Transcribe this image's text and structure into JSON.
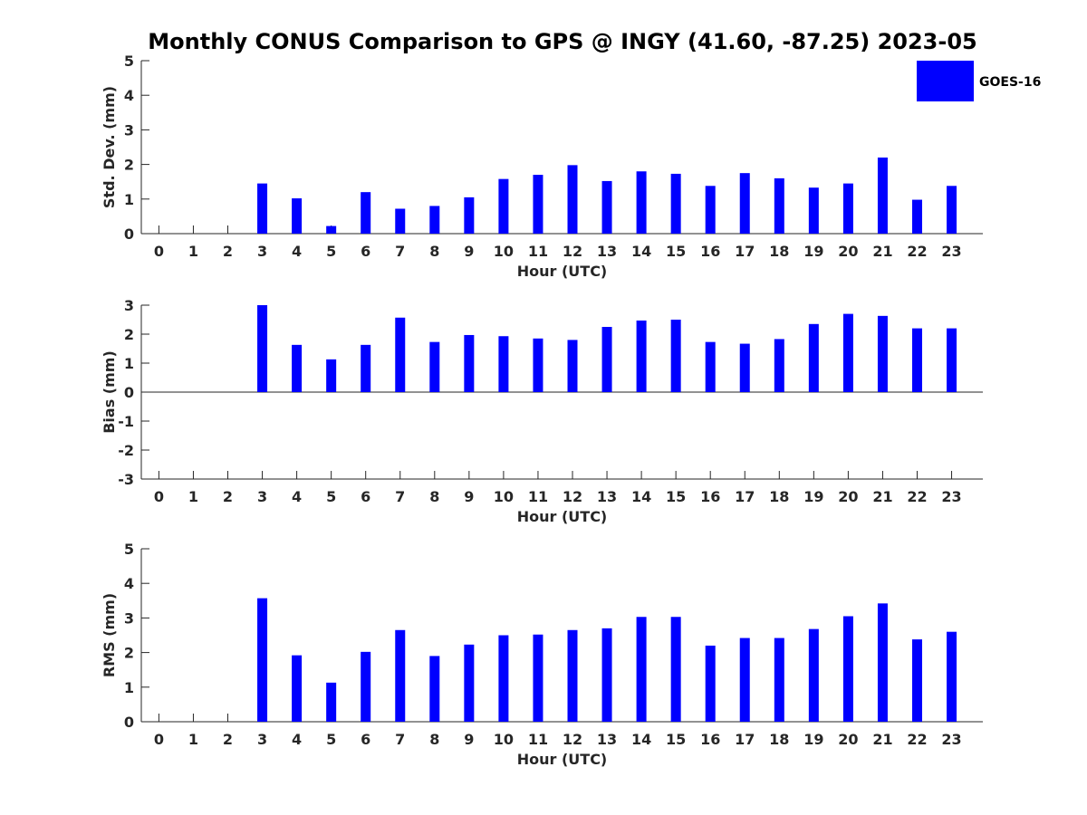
{
  "title": "Monthly CONUS Comparison to GPS @ INGY (41.60, -87.25) 2023-05",
  "legend": {
    "label": "GOES-16",
    "color": "#0000ff",
    "placement": "top-right"
  },
  "chart_data": [
    {
      "type": "bar",
      "xlabel": "Hour (UTC)",
      "ylabel": "Std. Dev. (mm)",
      "ylim": [
        0,
        5
      ],
      "yticks": [
        "0",
        "1",
        "2",
        "3",
        "4",
        "5"
      ],
      "categories": [
        "0",
        "1",
        "2",
        "3",
        "4",
        "5",
        "6",
        "7",
        "8",
        "9",
        "10",
        "11",
        "12",
        "13",
        "14",
        "15",
        "16",
        "17",
        "18",
        "19",
        "20",
        "21",
        "22",
        "23"
      ],
      "series": [
        {
          "name": "GOES-16",
          "values": [
            null,
            null,
            null,
            1.45,
            1.02,
            0.22,
            1.2,
            0.72,
            0.8,
            1.05,
            1.58,
            1.7,
            1.98,
            1.52,
            1.8,
            1.73,
            1.38,
            1.75,
            1.6,
            1.33,
            1.45,
            2.2,
            0.98,
            1.38
          ]
        }
      ]
    },
    {
      "type": "bar",
      "xlabel": "Hour (UTC)",
      "ylabel": "Bias (mm)",
      "ylim": [
        -3,
        3
      ],
      "yticks": [
        "-3",
        "-2",
        "-1",
        "0",
        "1",
        "2",
        "3"
      ],
      "categories": [
        "0",
        "1",
        "2",
        "3",
        "4",
        "5",
        "6",
        "7",
        "8",
        "9",
        "10",
        "11",
        "12",
        "13",
        "14",
        "15",
        "16",
        "17",
        "18",
        "19",
        "20",
        "21",
        "22",
        "23"
      ],
      "series": [
        {
          "name": "GOES-16",
          "values": [
            null,
            null,
            null,
            3.0,
            1.63,
            1.13,
            1.63,
            2.57,
            1.73,
            1.97,
            1.93,
            1.85,
            1.8,
            2.25,
            2.47,
            2.5,
            1.73,
            1.67,
            1.83,
            2.35,
            2.7,
            2.63,
            2.2,
            2.2
          ]
        }
      ]
    },
    {
      "type": "bar",
      "xlabel": "Hour (UTC)",
      "ylabel": "RMS (mm)",
      "ylim": [
        0,
        5
      ],
      "yticks": [
        "0",
        "1",
        "2",
        "3",
        "4",
        "5"
      ],
      "categories": [
        "0",
        "1",
        "2",
        "3",
        "4",
        "5",
        "6",
        "7",
        "8",
        "9",
        "10",
        "11",
        "12",
        "13",
        "14",
        "15",
        "16",
        "17",
        "18",
        "19",
        "20",
        "21",
        "22",
        "23"
      ],
      "series": [
        {
          "name": "GOES-16",
          "values": [
            null,
            null,
            null,
            3.57,
            1.92,
            1.13,
            2.02,
            2.65,
            1.9,
            2.23,
            2.5,
            2.52,
            2.65,
            2.7,
            3.03,
            3.03,
            2.2,
            2.42,
            2.42,
            2.68,
            3.05,
            3.42,
            2.38,
            2.6
          ]
        }
      ]
    }
  ]
}
